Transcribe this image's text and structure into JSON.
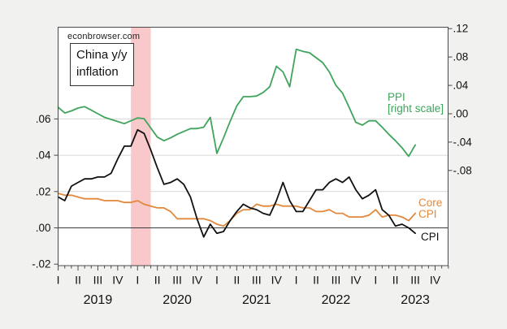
{
  "watermark": "econbrowser.com",
  "annotation_box": {
    "line1": "China y/y",
    "line2": "inflation"
  },
  "series_callouts": {
    "ppi_line1": "PPI",
    "ppi_line2": "[right scale]",
    "core_line1": "Core",
    "core_line2": "CPI",
    "cpi": "CPI"
  },
  "colors": {
    "background": "#f1f1ef",
    "plot_background": "#ffffff",
    "frame": "#4a4a4a",
    "gridline": "#d8d8d8",
    "zero_line": "#3c3c3c",
    "recession_band": "#f8c8cb",
    "cpi": "#111111",
    "core_cpi": "#e2883c",
    "ppi": "#3fa45c",
    "text": "#111111"
  },
  "chart_data": {
    "type": "line",
    "title": "China y/y inflation",
    "frequency": "monthly",
    "start_month": "2019-01",
    "end_month": "2023-07",
    "recession_band": {
      "from": "2019-12",
      "to": "2020-03",
      "from_index": 11,
      "to_index": 14
    },
    "left_axis": {
      "tick_labels": [
        ".06",
        ".04",
        ".02",
        ".00",
        "-.02"
      ],
      "tick_values": [
        0.06,
        0.04,
        0.02,
        0.0,
        -0.02
      ],
      "grid_values": [
        0.06,
        0.04,
        0.02
      ],
      "range": [
        -0.021,
        0.11
      ]
    },
    "right_axis": {
      "tick_labels": [
        ".12",
        ".08",
        ".04",
        ".00",
        "-.04",
        "-.08"
      ],
      "tick_values": [
        0.12,
        0.08,
        0.04,
        0.0,
        -0.04,
        -0.08
      ],
      "range": [
        -0.21,
        0.122
      ]
    },
    "x_axis": {
      "quarter_labels": [
        "I",
        "II",
        "III",
        "IV"
      ],
      "years": [
        "2019",
        "2020",
        "2021",
        "2022",
        "2023"
      ],
      "months_shown": 60
    },
    "series": [
      {
        "name": "PPI",
        "axis": "right",
        "color_key": "ppi",
        "values_pct": [
          0.9,
          0.1,
          0.4,
          0.8,
          1.0,
          0.5,
          0.0,
          -0.5,
          -0.8,
          -1.1,
          -1.4,
          -1.0,
          -0.6,
          -0.7,
          -2.0,
          -3.3,
          -3.8,
          -3.4,
          -2.9,
          -2.5,
          -2.1,
          -2.1,
          -1.9,
          -0.5,
          -5.6,
          -3.4,
          -1.1,
          1.1,
          2.4,
          2.4,
          2.5,
          3.0,
          3.8,
          6.7,
          5.9,
          3.8,
          9.1,
          8.8,
          8.6,
          7.9,
          7.2,
          5.9,
          4.0,
          2.9,
          0.9,
          -1.2,
          -1.6,
          -1.0,
          -1.0,
          -1.9,
          -2.9,
          -3.8,
          -4.8,
          -6.0,
          -4.4
        ]
      },
      {
        "name": "Core CPI",
        "axis": "left",
        "color_key": "core_cpi",
        "values_pct": [
          1.9,
          1.8,
          1.8,
          1.7,
          1.6,
          1.6,
          1.6,
          1.5,
          1.5,
          1.5,
          1.4,
          1.4,
          1.5,
          1.3,
          1.2,
          1.1,
          1.1,
          0.9,
          0.5,
          0.5,
          0.5,
          0.5,
          0.5,
          0.4,
          0.2,
          0.1,
          0.4,
          0.8,
          1.0,
          1.0,
          1.3,
          1.2,
          1.2,
          1.3,
          1.2,
          1.2,
          1.2,
          1.1,
          1.1,
          0.9,
          0.9,
          1.0,
          0.8,
          0.8,
          0.6,
          0.6,
          0.6,
          0.7,
          1.0,
          0.6,
          0.7,
          0.7,
          0.6,
          0.4,
          0.8
        ]
      },
      {
        "name": "CPI",
        "axis": "left",
        "color_key": "cpi",
        "values_pct": [
          1.7,
          1.5,
          2.3,
          2.5,
          2.7,
          2.7,
          2.8,
          2.8,
          3.0,
          3.8,
          4.5,
          4.5,
          5.4,
          5.2,
          4.3,
          3.3,
          2.4,
          2.5,
          2.7,
          2.4,
          1.7,
          0.5,
          -0.5,
          0.2,
          -0.3,
          -0.2,
          0.4,
          0.9,
          1.3,
          1.1,
          1.0,
          0.8,
          0.7,
          1.5,
          2.5,
          1.5,
          0.9,
          0.9,
          1.5,
          2.1,
          2.1,
          2.5,
          2.7,
          2.5,
          2.8,
          2.1,
          1.6,
          1.8,
          2.1,
          1.0,
          0.7,
          0.1,
          0.2,
          0.0,
          -0.3
        ]
      }
    ]
  }
}
